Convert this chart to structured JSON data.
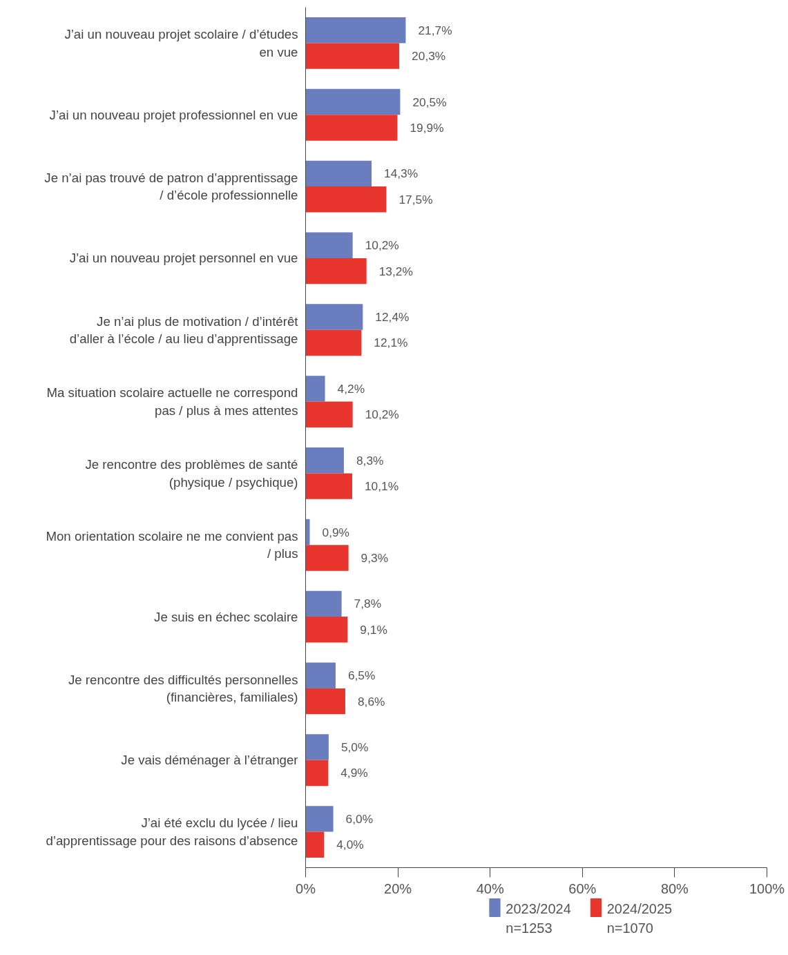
{
  "chart_data": {
    "type": "bar",
    "orientation": "horizontal",
    "categories": [
      "J’ai un nouveau projet scolaire / d’études en vue",
      "J’ai un nouveau projet professionnel en vue",
      "Je n’ai pas trouvé de patron d’apprentissage / d’école professionnelle",
      "J’ai un nouveau projet personnel en vue",
      "Je n’ai plus de motivation / d’intérêt d’aller à l’école / au lieu d’apprentissage",
      "Ma situation scolaire actuelle ne correspond pas / plus à mes attentes",
      "Je rencontre des problèmes de santé (physique / psychique)",
      "Mon orientation scolaire ne me convient pas / plus",
      "Je suis en échec scolaire",
      "Je rencontre des difficultés personnelles (financières, familiales)",
      "Je vais déménager à l’étranger",
      "J’ai été exclu du lycée / lieu d’apprentissage pour des raisons d’absence"
    ],
    "series": [
      {
        "name": "2023/2024\nn=1253",
        "color": "#6a7dbf",
        "values": [
          21.7,
          20.5,
          14.3,
          10.2,
          12.4,
          4.2,
          8.3,
          0.9,
          7.8,
          6.5,
          5.0,
          6.0
        ],
        "value_labels": [
          "21,7%",
          "20,5%",
          "14,3%",
          "10,2%",
          "12,4%",
          "4,2%",
          "8,3%",
          "0,9%",
          "7,8%",
          "6,5%",
          "5,0%",
          "6,0%"
        ]
      },
      {
        "name": "2024/2025\nn=1070",
        "color": "#e8352e",
        "values": [
          20.3,
          19.9,
          17.5,
          13.2,
          12.1,
          10.2,
          10.1,
          9.3,
          9.1,
          8.6,
          4.9,
          4.0
        ],
        "value_labels": [
          "20,3%",
          "19,9%",
          "17,5%",
          "13,2%",
          "12,1%",
          "10,2%",
          "10,1%",
          "9,3%",
          "9,1%",
          "8,6%",
          "4,9%",
          "4,0%"
        ]
      }
    ],
    "xlim": [
      0,
      100
    ],
    "xticks": [
      {
        "value": 0,
        "label": "0%"
      },
      {
        "value": 20,
        "label": "20%"
      },
      {
        "value": 40,
        "label": "40%"
      },
      {
        "value": 60,
        "label": "60%"
      },
      {
        "value": 80,
        "label": "80%"
      },
      {
        "value": 100,
        "label": "100%"
      }
    ],
    "grid": false,
    "legend": "bottom"
  }
}
